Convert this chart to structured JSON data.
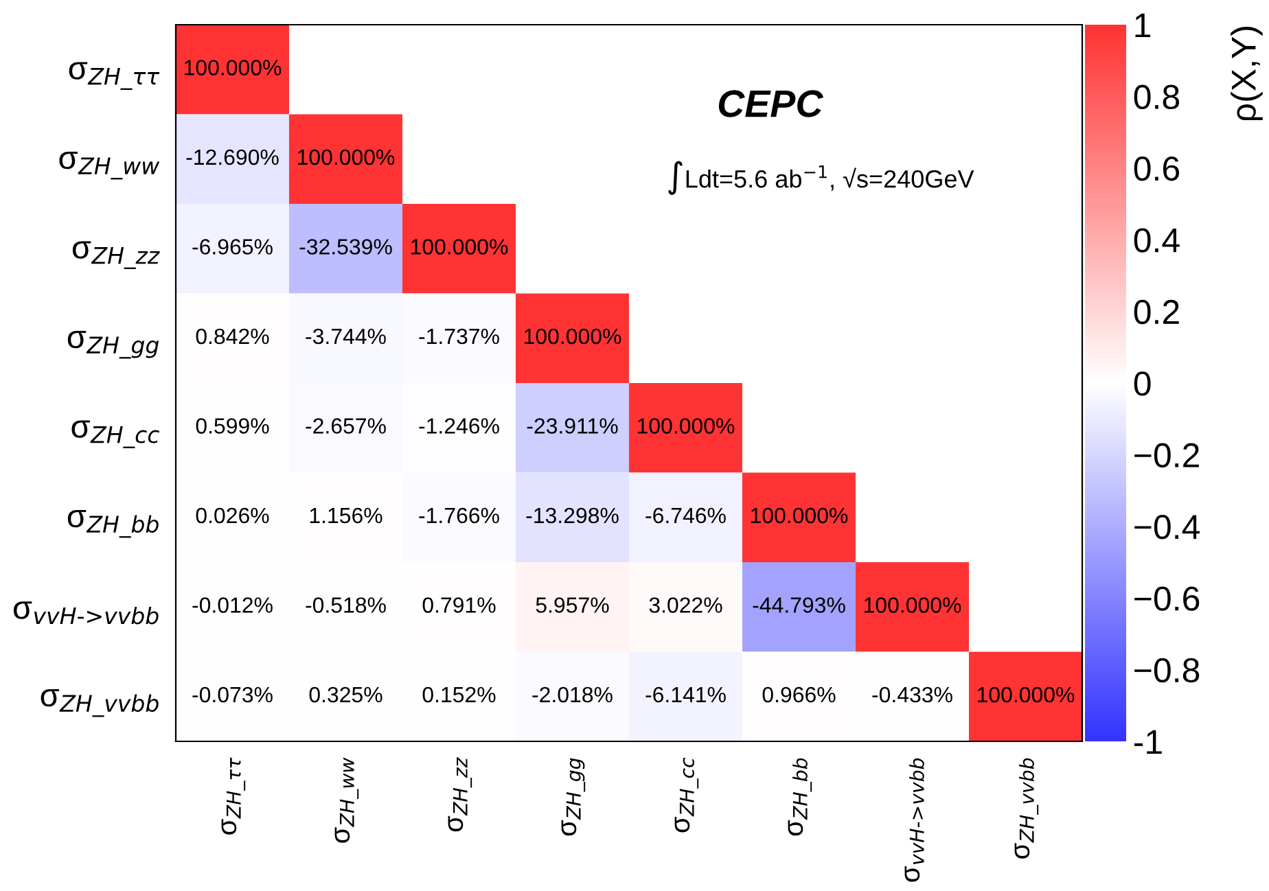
{
  "chart_data": {
    "type": "heatmap",
    "categories": [
      "σ$_{ZH_ττ}$",
      "σ$_{ZH_ww}$",
      "σ$_{ZH_zz}$",
      "σ$_{ZH_gg}$",
      "σ$_{ZH_cc}$",
      "σ$_{ZH_bb}$",
      "σ$_{vvH->vvbb}$",
      "σ$_{ZH_vvbb}$"
    ],
    "y_categories": [
      "σ$_{ZH_ττ}$",
      "σ$_{ZH_ww}$",
      "σ$_{ZH_zz}$",
      "σ$_{ZH_gg}$",
      "σ$_{ZH_cc}$",
      "σ$_{ZH_bb}$",
      "σ$_{vvH->vvbb}$",
      "σ$_{ZH_vvbb}$"
    ],
    "cells": [
      [
        1.0,
        null,
        null,
        null,
        null,
        null,
        null,
        null
      ],
      [
        -0.1269,
        1.0,
        null,
        null,
        null,
        null,
        null,
        null
      ],
      [
        -0.06965,
        -0.32539,
        1.0,
        null,
        null,
        null,
        null,
        null
      ],
      [
        0.00842,
        -0.03744,
        -0.01737,
        1.0,
        null,
        null,
        null,
        null
      ],
      [
        0.00599,
        -0.02657,
        -0.01246,
        -0.23911,
        1.0,
        null,
        null,
        null
      ],
      [
        0.00026,
        0.01156,
        -0.01766,
        -0.13298,
        -0.06746,
        1.0,
        null,
        null
      ],
      [
        -0.00012,
        -0.00518,
        0.00791,
        0.05957,
        0.03022,
        -0.44793,
        1.0,
        null
      ],
      [
        -0.00073,
        0.00325,
        0.00152,
        -0.02018,
        -0.06141,
        0.00966,
        -0.00433,
        1.0
      ]
    ],
    "cell_labels": [
      [
        "100.000%",
        null,
        null,
        null,
        null,
        null,
        null,
        null
      ],
      [
        "-12.690%",
        "100.000%",
        null,
        null,
        null,
        null,
        null,
        null
      ],
      [
        "-6.965%",
        "-32.539%",
        "100.000%",
        null,
        null,
        null,
        null,
        null
      ],
      [
        "0.842%",
        "-3.744%",
        "-1.737%",
        "100.000%",
        null,
        null,
        null,
        null
      ],
      [
        "0.599%",
        "-2.657%",
        "-1.246%",
        "-23.911%",
        "100.000%",
        null,
        null,
        null
      ],
      [
        "0.026%",
        "1.156%",
        "-1.766%",
        "-13.298%",
        "-6.746%",
        "100.000%",
        null,
        null
      ],
      [
        "-0.012%",
        "-0.518%",
        "0.791%",
        "5.957%",
        "3.022%",
        "-44.793%",
        "100.000%",
        null
      ],
      [
        "-0.073%",
        "0.325%",
        "0.152%",
        "-2.018%",
        "-6.141%",
        "0.966%",
        "-0.433%",
        "100.000%"
      ]
    ],
    "clim": [
      -1,
      1
    ],
    "cticks": [
      -1,
      {
        "value": -0.8,
        "label": "−0.8"
      },
      {
        "value": -0.6,
        "label": "−0.6"
      },
      {
        "value": -0.4,
        "label": "−0.4"
      },
      {
        "value": -0.2,
        "label": "−0.2"
      },
      0,
      0.2,
      0.4,
      0.6,
      0.8,
      1
    ],
    "clabel": "ρ(X,Y)",
    "annotations": [
      "CEPC",
      "∫Ldt=5.6 ab$^{−1}$, √s=240GeV"
    ]
  }
}
